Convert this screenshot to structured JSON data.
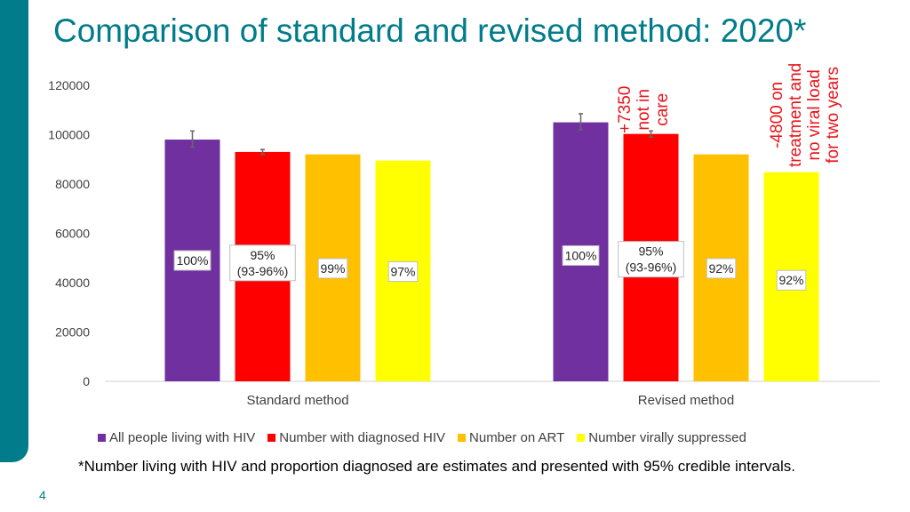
{
  "theme": {
    "accent": "#007C8A",
    "annotation_color": "#E8141B"
  },
  "slide": {
    "title": "Comparison of standard and revised method: 2020*",
    "page_number": "4",
    "footnote": "*Number living with HIV and proportion diagnosed are estimates and presented with 95% credible intervals."
  },
  "annotations": [
    {
      "lines": [
        "+7350",
        "not in",
        "care"
      ]
    },
    {
      "lines": [
        "-4800 on",
        "treatment and",
        "no viral load",
        "for two years"
      ]
    }
  ],
  "chart_data": {
    "type": "bar",
    "title": "",
    "categories": [
      "Standard method",
      "Revised method"
    ],
    "ylim": [
      0,
      120000
    ],
    "yticks": [
      0,
      20000,
      40000,
      60000,
      80000,
      100000,
      120000
    ],
    "grid": false,
    "legend_position": "bottom",
    "series": [
      {
        "name": "All people living with HIV",
        "color": "#7030A0",
        "values": [
          98000,
          105000
        ],
        "error": [
          [
            95000,
            101500
          ],
          [
            102000,
            108500
          ]
        ],
        "labels": [
          "100%",
          "100%"
        ]
      },
      {
        "name": "Number with diagnosed HIV",
        "color": "#FF0000",
        "values": [
          93000,
          100300
        ],
        "error": [
          [
            92000,
            94000
          ],
          [
            99000,
            101500
          ]
        ],
        "labels": [
          "95%\n(93-96%)",
          "95%\n(93-96%)"
        ]
      },
      {
        "name": "Number on ART",
        "color": "#FFC000",
        "values": [
          92000,
          92000
        ],
        "error": null,
        "labels": [
          "99%",
          "92%"
        ]
      },
      {
        "name": "Number virally suppressed",
        "color": "#FFFF00",
        "values": [
          89500,
          84800
        ],
        "error": null,
        "labels": [
          "97%",
          "92%"
        ]
      }
    ]
  }
}
